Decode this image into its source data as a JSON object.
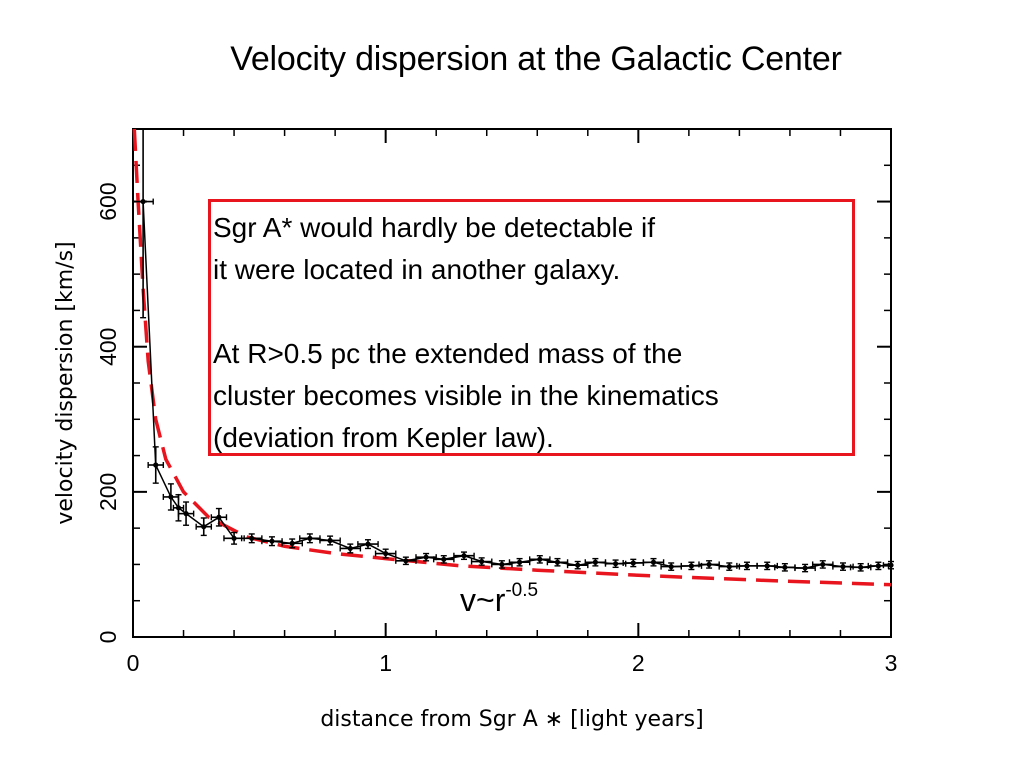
{
  "slide": {
    "title": "Velocity dispersion at the Galactic Center",
    "annotation": {
      "line1": "Sgr A* would hardly be detectable if",
      "line2": "it were located in another galaxy.",
      "line3": "At R>0.5 pc the extended mass of the",
      "line4": "cluster becomes visible in the kinematics",
      "line5": "(deviation from Kepler law).",
      "border_color": "#e8141e"
    },
    "formula": {
      "base": "v~r",
      "exponent": "-0.5"
    }
  },
  "chart_data": {
    "type": "scatter",
    "title": "",
    "xlabel": "distance from Sgr A ∗ [light years]",
    "ylabel": "velocity dispersion [km/s]",
    "xlim": [
      0,
      3
    ],
    "ylim": [
      0,
      700
    ],
    "xticks": [
      0,
      1,
      2,
      3
    ],
    "yticks": [
      0,
      200,
      400,
      600
    ],
    "grid": false,
    "series": [
      {
        "style": "data points with error bars, connected",
        "color": "#000000",
        "points": [
          {
            "x": 0.04,
            "y": 600,
            "xerr": 0.04,
            "yerr": 160
          },
          {
            "x": 0.09,
            "y": 237,
            "xerr": 0.03,
            "yerr": 25
          },
          {
            "x": 0.15,
            "y": 193,
            "xerr": 0.03,
            "yerr": 18
          },
          {
            "x": 0.18,
            "y": 178,
            "xerr": 0.02,
            "yerr": 18
          },
          {
            "x": 0.21,
            "y": 170,
            "xerr": 0.03,
            "yerr": 16
          },
          {
            "x": 0.28,
            "y": 152,
            "xerr": 0.03,
            "yerr": 12
          },
          {
            "x": 0.34,
            "y": 165,
            "xerr": 0.03,
            "yerr": 12
          },
          {
            "x": 0.4,
            "y": 136,
            "xerr": 0.04,
            "yerr": 8
          },
          {
            "x": 0.47,
            "y": 136,
            "xerr": 0.04,
            "yerr": 6
          },
          {
            "x": 0.55,
            "y": 132,
            "xerr": 0.04,
            "yerr": 6
          },
          {
            "x": 0.63,
            "y": 129,
            "xerr": 0.04,
            "yerr": 6
          },
          {
            "x": 0.7,
            "y": 136,
            "xerr": 0.04,
            "yerr": 6
          },
          {
            "x": 0.78,
            "y": 133,
            "xerr": 0.04,
            "yerr": 6
          },
          {
            "x": 0.86,
            "y": 122,
            "xerr": 0.04,
            "yerr": 6
          },
          {
            "x": 0.93,
            "y": 128,
            "xerr": 0.04,
            "yerr": 6
          },
          {
            "x": 1.0,
            "y": 115,
            "xerr": 0.04,
            "yerr": 6
          },
          {
            "x": 1.08,
            "y": 105,
            "xerr": 0.04,
            "yerr": 5
          },
          {
            "x": 1.16,
            "y": 110,
            "xerr": 0.04,
            "yerr": 5
          },
          {
            "x": 1.23,
            "y": 107,
            "xerr": 0.04,
            "yerr": 5
          },
          {
            "x": 1.31,
            "y": 112,
            "xerr": 0.04,
            "yerr": 5
          },
          {
            "x": 1.38,
            "y": 104,
            "xerr": 0.04,
            "yerr": 5
          },
          {
            "x": 1.46,
            "y": 100,
            "xerr": 0.04,
            "yerr": 5
          },
          {
            "x": 1.53,
            "y": 103,
            "xerr": 0.04,
            "yerr": 5
          },
          {
            "x": 1.61,
            "y": 107,
            "xerr": 0.04,
            "yerr": 5
          },
          {
            "x": 1.68,
            "y": 103,
            "xerr": 0.04,
            "yerr": 5
          },
          {
            "x": 1.76,
            "y": 99,
            "xerr": 0.04,
            "yerr": 5
          },
          {
            "x": 1.83,
            "y": 103,
            "xerr": 0.04,
            "yerr": 5
          },
          {
            "x": 1.91,
            "y": 101,
            "xerr": 0.04,
            "yerr": 5
          },
          {
            "x": 1.98,
            "y": 102,
            "xerr": 0.04,
            "yerr": 5
          },
          {
            "x": 2.06,
            "y": 103,
            "xerr": 0.04,
            "yerr": 5
          },
          {
            "x": 2.13,
            "y": 97,
            "xerr": 0.04,
            "yerr": 5
          },
          {
            "x": 2.21,
            "y": 98,
            "xerr": 0.04,
            "yerr": 5
          },
          {
            "x": 2.28,
            "y": 100,
            "xerr": 0.04,
            "yerr": 5
          },
          {
            "x": 2.36,
            "y": 97,
            "xerr": 0.04,
            "yerr": 5
          },
          {
            "x": 2.43,
            "y": 98,
            "xerr": 0.04,
            "yerr": 5
          },
          {
            "x": 2.51,
            "y": 98,
            "xerr": 0.04,
            "yerr": 5
          },
          {
            "x": 2.58,
            "y": 96,
            "xerr": 0.04,
            "yerr": 5
          },
          {
            "x": 2.66,
            "y": 95,
            "xerr": 0.04,
            "yerr": 5
          },
          {
            "x": 2.73,
            "y": 100,
            "xerr": 0.04,
            "yerr": 5
          },
          {
            "x": 2.81,
            "y": 97,
            "xerr": 0.04,
            "yerr": 5
          },
          {
            "x": 2.88,
            "y": 96,
            "xerr": 0.04,
            "yerr": 5
          },
          {
            "x": 2.95,
            "y": 98,
            "xerr": 0.04,
            "yerr": 5
          },
          {
            "x": 3.0,
            "y": 99,
            "xerr": 0.03,
            "yerr": 5
          }
        ]
      },
      {
        "style": "dashed model curve",
        "color": "#e8141e",
        "formula": "v~r-0.5",
        "points": [
          {
            "x": 0.005,
            "y": 700
          },
          {
            "x": 0.02,
            "y": 600
          },
          {
            "x": 0.04,
            "y": 480
          },
          {
            "x": 0.06,
            "y": 380
          },
          {
            "x": 0.09,
            "y": 300
          },
          {
            "x": 0.13,
            "y": 245
          },
          {
            "x": 0.2,
            "y": 200
          },
          {
            "x": 0.3,
            "y": 165
          },
          {
            "x": 0.45,
            "y": 138
          },
          {
            "x": 0.6,
            "y": 125
          },
          {
            "x": 0.8,
            "y": 115
          },
          {
            "x": 1.0,
            "y": 108
          },
          {
            "x": 1.3,
            "y": 98
          },
          {
            "x": 1.6,
            "y": 92
          },
          {
            "x": 2.0,
            "y": 85
          },
          {
            "x": 2.5,
            "y": 78
          },
          {
            "x": 3.0,
            "y": 72
          }
        ]
      }
    ]
  }
}
